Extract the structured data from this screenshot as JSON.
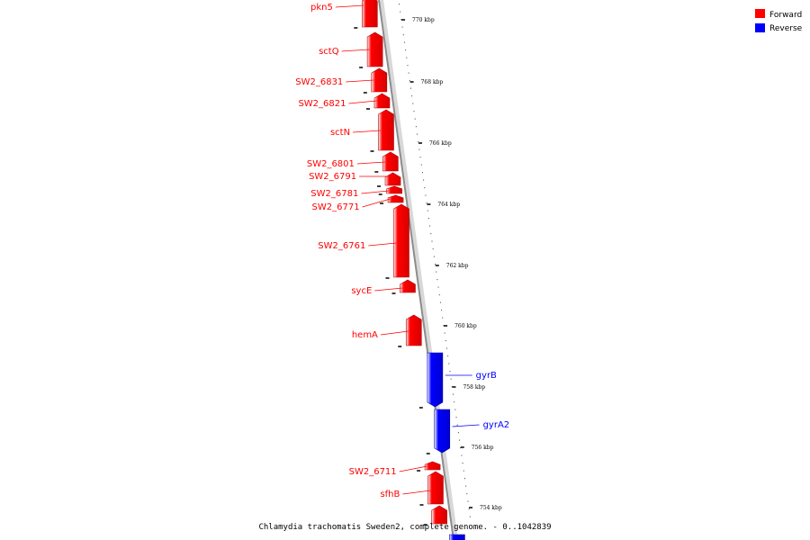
{
  "caption": "Chlamydia trachomatis Sweden2, complete genome. - 0..1042839",
  "colors": {
    "forward": "#ff0000",
    "reverse": "#0000ff",
    "backbone": "#8c8c8c"
  },
  "legend": [
    {
      "label": "Forward",
      "color": "#ff0000"
    },
    {
      "label": "Reverse",
      "color": "#0000ff"
    }
  ],
  "scale_labels": [
    "770 kbp",
    "768 kbp",
    "766 kbp",
    "764 kbp",
    "762 kbp",
    "760 kbp",
    "758 kbp",
    "756 kbp",
    "754 kbp"
  ],
  "genes": [
    {
      "name": "pkn5",
      "strand": "forward"
    },
    {
      "name": "sctQ",
      "strand": "forward"
    },
    {
      "name": "SW2_6831",
      "strand": "forward"
    },
    {
      "name": "SW2_6821",
      "strand": "forward"
    },
    {
      "name": "sctN",
      "strand": "forward"
    },
    {
      "name": "SW2_6801",
      "strand": "forward"
    },
    {
      "name": "SW2_6791",
      "strand": "forward"
    },
    {
      "name": "SW2_6781",
      "strand": "forward"
    },
    {
      "name": "SW2_6771",
      "strand": "forward"
    },
    {
      "name": "SW2_6761",
      "strand": "forward"
    },
    {
      "name": "sycE",
      "strand": "forward"
    },
    {
      "name": "hemA",
      "strand": "forward"
    },
    {
      "name": "gyrB",
      "strand": "reverse"
    },
    {
      "name": "gyrA2",
      "strand": "reverse"
    },
    {
      "name": "SW2_6711",
      "strand": "forward"
    },
    {
      "name": "sfhB",
      "strand": "forward"
    }
  ]
}
